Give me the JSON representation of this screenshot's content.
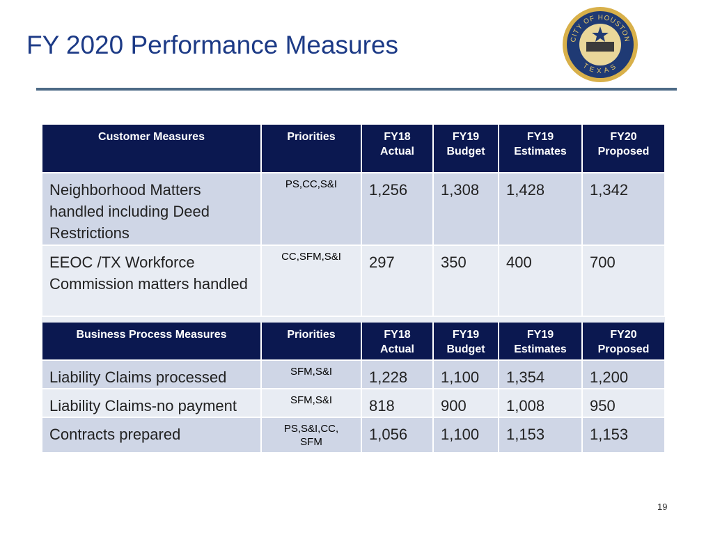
{
  "header": {
    "title": "FY 2020 Performance Measures",
    "logo": {
      "top": "CITY OF HOUSTON",
      "bottom": "TEXAS"
    }
  },
  "tables": [
    {
      "columns": [
        "Customer Measures",
        "Priorities",
        "FY18\nActual",
        "FY19\nBudget",
        "FY19\nEstimates",
        "FY20\nProposed"
      ],
      "rows": [
        [
          "Neighborhood Matters handled including Deed Restrictions",
          "PS,CC,S&I",
          "1,256",
          "1,308",
          "1,428",
          "1,342"
        ],
        [
          "EEOC /TX Workforce Commission matters handled",
          "CC,SFM,S&I",
          "297",
          "350",
          "400",
          "700"
        ]
      ]
    },
    {
      "columns": [
        "Business Process Measures",
        "Priorities",
        "FY18\nActual",
        "FY19\nBudget",
        "FY19\nEstimates",
        "FY20\nProposed"
      ],
      "rows": [
        [
          "Liability Claims processed",
          "SFM,S&I",
          "1,228",
          "1,100",
          "1,354",
          "1,200"
        ],
        [
          "Liability Claims-no payment",
          "SFM,S&I",
          "818",
          "900",
          "1,008",
          "950"
        ],
        [
          "Contracts prepared",
          "PS,S&I,CC,\nSFM",
          "1,056",
          "1,100",
          "1,153",
          "1,153"
        ]
      ]
    }
  ],
  "page_number": "19"
}
